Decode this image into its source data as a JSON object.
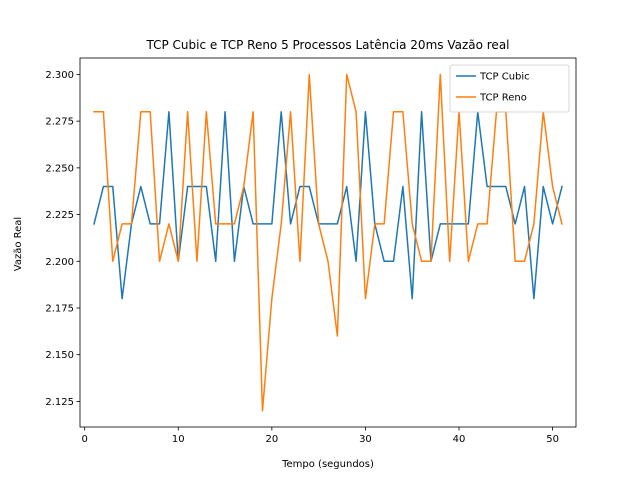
{
  "chart_data": {
    "type": "line",
    "title": "TCP Cubic e TCP Reno 5 Processos Latência 20ms Vazão real",
    "xlabel": "Tempo (segundos)",
    "ylabel": "Vazão Real",
    "xlim": [
      -0.5,
      52.5
    ],
    "ylim": [
      2.1113,
      2.3088
    ],
    "xticks": [
      0,
      10,
      20,
      30,
      40,
      50
    ],
    "yticks": [
      2.125,
      2.15,
      2.175,
      2.2,
      2.225,
      2.25,
      2.275,
      2.3
    ],
    "xtick_labels": [
      "0",
      "10",
      "20",
      "30",
      "40",
      "50"
    ],
    "ytick_labels": [
      "2.125",
      "2.150",
      "2.175",
      "2.200",
      "2.225",
      "2.250",
      "2.275",
      "2.300"
    ],
    "legend_position": "top-right",
    "grid": false,
    "x": [
      1,
      2,
      3,
      4,
      5,
      6,
      7,
      8,
      9,
      10,
      11,
      12,
      13,
      14,
      15,
      16,
      17,
      18,
      19,
      20,
      21,
      22,
      23,
      24,
      25,
      26,
      27,
      28,
      29,
      30,
      31,
      32,
      33,
      34,
      35,
      36,
      37,
      38,
      39,
      40,
      41,
      42,
      43,
      44,
      45,
      46,
      47,
      48,
      49,
      50,
      51
    ],
    "series": [
      {
        "name": "TCP Cubic",
        "color": "#1f77b4",
        "values": [
          2.22,
          2.24,
          2.24,
          2.18,
          2.22,
          2.24,
          2.22,
          2.22,
          2.28,
          2.2,
          2.24,
          2.24,
          2.24,
          2.2,
          2.28,
          2.2,
          2.24,
          2.22,
          2.22,
          2.22,
          2.28,
          2.22,
          2.24,
          2.24,
          2.22,
          2.22,
          2.22,
          2.24,
          2.2,
          2.28,
          2.22,
          2.2,
          2.2,
          2.24,
          2.18,
          2.28,
          2.2,
          2.22,
          2.22,
          2.22,
          2.22,
          2.28,
          2.24,
          2.24,
          2.24,
          2.22,
          2.24,
          2.18,
          2.24,
          2.22,
          2.24
        ]
      },
      {
        "name": "TCP Reno",
        "color": "#ff7f0e",
        "values": [
          2.28,
          2.28,
          2.2,
          2.22,
          2.22,
          2.28,
          2.28,
          2.2,
          2.22,
          2.2,
          2.28,
          2.2,
          2.28,
          2.22,
          2.22,
          2.22,
          2.24,
          2.28,
          2.12,
          2.18,
          2.22,
          2.28,
          2.2,
          2.3,
          2.22,
          2.2,
          2.16,
          2.3,
          2.28,
          2.18,
          2.22,
          2.22,
          2.28,
          2.28,
          2.22,
          2.2,
          2.2,
          2.3,
          2.2,
          2.28,
          2.2,
          2.22,
          2.22,
          2.28,
          2.28,
          2.2,
          2.2,
          2.22,
          2.28,
          2.24,
          2.22
        ]
      }
    ]
  }
}
